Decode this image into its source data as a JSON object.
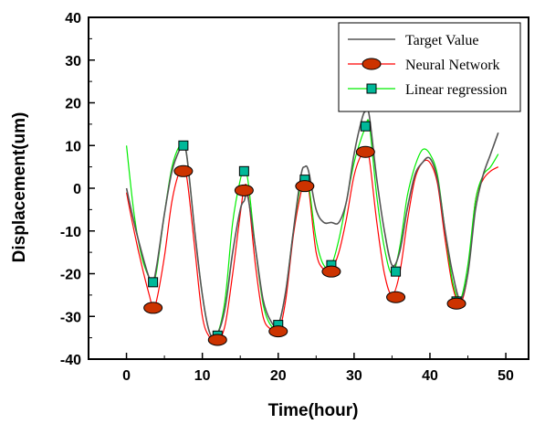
{
  "chart_data": {
    "type": "line",
    "title": "",
    "xlabel": "Time(hour)",
    "ylabel": "Displacement(um)",
    "xlim": [
      -5,
      53
    ],
    "ylim": [
      -40,
      40
    ],
    "xticks": [
      0,
      10,
      20,
      30,
      40,
      50
    ],
    "yticks": [
      -40,
      -30,
      -20,
      -10,
      0,
      10,
      20,
      30,
      40
    ],
    "legend_position": "top-right",
    "series": [
      {
        "name": "Target Value",
        "color": "#555555",
        "marker": "none",
        "x": [
          0,
          1,
          2,
          3,
          3.5,
          4,
          5,
          6,
          7,
          7.5,
          8,
          9,
          10,
          11,
          12,
          13,
          14,
          15,
          15.5,
          16,
          17,
          18,
          19,
          20,
          21,
          22,
          23,
          23.5,
          24,
          25,
          26,
          27,
          28,
          29,
          30,
          31,
          31.5,
          32,
          33,
          34,
          35,
          36,
          37,
          38,
          39,
          40,
          41,
          42,
          43,
          44,
          45,
          46,
          47,
          48,
          49
        ],
        "y": [
          0,
          -8,
          -15,
          -21,
          -22,
          -18,
          -6,
          4,
          9,
          10,
          7,
          -10,
          -25,
          -34,
          -34,
          -28,
          -15,
          -5,
          -3,
          -2,
          -14,
          -26,
          -31,
          -32,
          -24,
          -10,
          3,
          5,
          4,
          -5,
          -8,
          -8,
          -8,
          -3,
          8,
          16,
          18,
          17,
          2,
          -10,
          -18,
          -15,
          -5,
          3,
          6,
          7,
          2,
          -10,
          -20,
          -26,
          -20,
          -5,
          3,
          8,
          13
        ]
      },
      {
        "name": "Neural Network",
        "color": "#ff0000",
        "marker": "ellipse",
        "x": [
          0,
          1,
          2,
          3,
          3.5,
          4,
          5,
          6,
          7,
          7.5,
          8,
          9,
          10,
          11,
          12,
          13,
          14,
          15,
          15.5,
          16,
          17,
          18,
          19,
          20,
          21,
          22,
          23,
          23.5,
          24,
          25,
          26,
          27,
          28,
          29,
          30,
          31,
          31.5,
          32,
          33,
          34,
          35,
          36,
          37,
          38,
          39,
          40,
          41,
          42,
          43,
          44,
          45,
          46,
          47,
          48,
          49
        ],
        "y": [
          -1,
          -10,
          -18,
          -25,
          -28,
          -26,
          -16,
          -3,
          4,
          4,
          2,
          -14,
          -30,
          -35,
          -36,
          -32,
          -20,
          -6,
          0,
          -1,
          -18,
          -30,
          -33,
          -34,
          -26,
          -11,
          -1,
          1,
          0,
          -15,
          -19,
          -19,
          -15,
          -7,
          3,
          8,
          8,
          7,
          -8,
          -20,
          -25,
          -20,
          -8,
          2,
          6,
          6,
          1,
          -12,
          -23,
          -27,
          -20,
          -3,
          2,
          4,
          5
        ]
      },
      {
        "name": "Linear regression",
        "color": "#00ee00",
        "marker": "square",
        "x": [
          0,
          1,
          2,
          3,
          3.5,
          4,
          5,
          6,
          7,
          7.5,
          8,
          9,
          10,
          11,
          12,
          13,
          14,
          15,
          15.5,
          16,
          17,
          18,
          19,
          20,
          21,
          22,
          23,
          23.5,
          24,
          25,
          26,
          27,
          28,
          29,
          30,
          31,
          31.5,
          32,
          33,
          34,
          35,
          36,
          37,
          38,
          39,
          40,
          41,
          42,
          43,
          44,
          45,
          46,
          47,
          48,
          49
        ],
        "y": [
          10,
          -6,
          -16,
          -21,
          -22,
          -19,
          -6,
          5,
          10,
          10,
          7,
          -10,
          -25,
          -34,
          -34,
          -26,
          -8,
          2,
          4,
          2,
          -14,
          -27,
          -32,
          -32,
          -24,
          -10,
          1,
          2,
          1,
          -12,
          -18,
          -18,
          -12,
          -3,
          6,
          12,
          14,
          15,
          -2,
          -14,
          -20,
          -14,
          -2,
          5,
          9,
          8,
          3,
          -10,
          -22,
          -26,
          -18,
          -3,
          3,
          5,
          8
        ]
      }
    ],
    "markers": {
      "Neural Network": {
        "x": [
          3.5,
          7.5,
          12,
          15.5,
          20,
          23.5,
          27,
          31.5,
          35.5,
          43.5
        ],
        "y": [
          -28,
          4,
          -35.5,
          -0.5,
          -33.5,
          0.5,
          -19.5,
          8.5,
          -25.5,
          -27
        ]
      },
      "Linear regression": {
        "x": [
          3.5,
          7.5,
          12,
          15.5,
          20,
          23.5,
          27,
          31.5,
          35.5,
          43.5
        ],
        "y": [
          -22,
          10,
          -34.5,
          4,
          -32,
          2,
          -18,
          14.5,
          -19.5,
          -26.5
        ]
      }
    },
    "marker_colors": {
      "ellipse_fill": "#cc3300",
      "ellipse_stroke": "#000000",
      "square_fill": "#00b899",
      "square_stroke": "#000000"
    }
  }
}
